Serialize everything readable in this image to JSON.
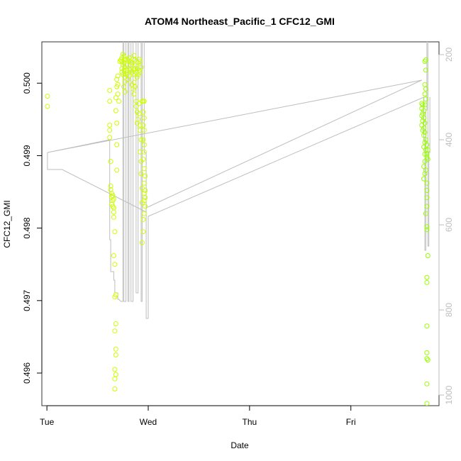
{
  "chart_data": {
    "type": "scatter",
    "title": "ATOM4 Northeast_Pacific_1 CFC12_GMI",
    "xlabel": "Date",
    "ylabel": "CFC12_GMI",
    "x_unit": "days (Tue 00:00 = 0)",
    "xlim": [
      -0.05,
      3.87
    ],
    "ylim": [
      0.49555,
      0.50057
    ],
    "x_ticks": [
      {
        "value": 0,
        "label": "Tue"
      },
      {
        "value": 1,
        "label": "Wed"
      },
      {
        "value": 2,
        "label": "Thu"
      },
      {
        "value": 3,
        "label": "Fri"
      }
    ],
    "y_ticks": [
      {
        "value": 0.496,
        "label": "0.496"
      },
      {
        "value": 0.497,
        "label": "0.497"
      },
      {
        "value": 0.498,
        "label": "0.498"
      },
      {
        "value": 0.499,
        "label": "0.499"
      },
      {
        "value": 0.5,
        "label": "0.500"
      }
    ],
    "y2_ticks": [
      {
        "value": 200,
        "label": "200"
      },
      {
        "value": 400,
        "label": "400"
      },
      {
        "value": 600,
        "label": "600"
      },
      {
        "value": 800,
        "label": "800"
      },
      {
        "value": 1000,
        "label": "1000"
      }
    ],
    "y2lim_reversed": [
      1025,
      170
    ],
    "grid": false,
    "colors": {
      "points_early": "#ccff00",
      "points_late": "#99ff00",
      "secondary_line": "#bebebe",
      "secondary_axis": "#bebebe"
    },
    "series": [
      {
        "kind": "points",
        "values": [
          [
            0.005,
            0.49982
          ],
          [
            0.005,
            0.49968
          ],
          [
            0.62,
            0.4999
          ],
          [
            0.62,
            0.49975
          ],
          [
            0.62,
            0.49942
          ],
          [
            0.62,
            0.49935
          ],
          [
            0.62,
            0.49925
          ],
          [
            0.63,
            0.49892
          ],
          [
            0.63,
            0.49858
          ],
          [
            0.63,
            0.49853
          ],
          [
            0.64,
            0.49848
          ],
          [
            0.64,
            0.49843
          ],
          [
            0.65,
            0.49838
          ],
          [
            0.64,
            0.49833
          ],
          [
            0.66,
            0.49828
          ],
          [
            0.65,
            0.4983
          ],
          [
            0.66,
            0.4984
          ],
          [
            0.65,
            0.49845
          ],
          [
            0.66,
            0.49822
          ],
          [
            0.66,
            0.49815
          ],
          [
            0.67,
            0.49795
          ],
          [
            0.66,
            0.49762
          ],
          [
            0.67,
            0.4975
          ],
          [
            0.68,
            0.49708
          ],
          [
            0.67,
            0.49705
          ],
          [
            0.68,
            0.49668
          ],
          [
            0.67,
            0.49658
          ],
          [
            0.68,
            0.49633
          ],
          [
            0.68,
            0.49625
          ],
          [
            0.67,
            0.49605
          ],
          [
            0.68,
            0.49598
          ],
          [
            0.67,
            0.49592
          ],
          [
            0.67,
            0.49578
          ],
          [
            0.68,
            0.4998
          ],
          [
            0.69,
            0.49995
          ],
          [
            0.69,
            0.50005
          ],
          [
            0.7,
            0.5001
          ],
          [
            0.7,
            0.49998
          ],
          [
            0.7,
            0.49985
          ],
          [
            0.71,
            0.49975
          ],
          [
            0.68,
            0.49962
          ],
          [
            0.69,
            0.49945
          ],
          [
            0.69,
            0.4988
          ],
          [
            0.69,
            0.49915
          ],
          [
            0.72,
            0.5003
          ],
          [
            0.73,
            0.50032
          ],
          [
            0.74,
            0.5003
          ],
          [
            0.75,
            0.50025
          ],
          [
            0.76,
            0.50028
          ],
          [
            0.74,
            0.50035
          ],
          [
            0.75,
            0.5004
          ],
          [
            0.76,
            0.50037
          ],
          [
            0.77,
            0.50032
          ],
          [
            0.78,
            0.50033
          ],
          [
            0.77,
            0.50022
          ],
          [
            0.78,
            0.50018
          ],
          [
            0.79,
            0.50025
          ],
          [
            0.8,
            0.50032
          ],
          [
            0.81,
            0.50035
          ],
          [
            0.82,
            0.5003
          ],
          [
            0.83,
            0.50025
          ],
          [
            0.84,
            0.50028
          ],
          [
            0.85,
            0.50033
          ],
          [
            0.86,
            0.50038
          ],
          [
            0.87,
            0.50032
          ],
          [
            0.88,
            0.50025
          ],
          [
            0.89,
            0.5002
          ],
          [
            0.9,
            0.50028
          ],
          [
            0.91,
            0.50033
          ],
          [
            0.92,
            0.5003
          ],
          [
            0.93,
            0.50022
          ],
          [
            0.74,
            0.5002
          ],
          [
            0.74,
            0.50015
          ],
          [
            0.75,
            0.50012
          ],
          [
            0.76,
            0.50018
          ],
          [
            0.77,
            0.50008
          ],
          [
            0.78,
            0.50012
          ],
          [
            0.79,
            0.50015
          ],
          [
            0.8,
            0.50005
          ],
          [
            0.81,
            0.5001
          ],
          [
            0.82,
            0.50018
          ],
          [
            0.83,
            0.5002
          ],
          [
            0.84,
            0.50015
          ],
          [
            0.85,
            0.50012
          ],
          [
            0.86,
            0.50018
          ],
          [
            0.87,
            0.5002
          ],
          [
            0.88,
            0.50015
          ],
          [
            0.89,
            0.50008
          ],
          [
            0.9,
            0.50012
          ],
          [
            0.91,
            0.50018
          ],
          [
            0.92,
            0.50015
          ],
          [
            0.76,
            0.49995
          ],
          [
            0.77,
            0.49988
          ],
          [
            0.77,
            0.50002
          ],
          [
            0.84,
            0.49998
          ],
          [
            0.85,
            0.49992
          ],
          [
            0.86,
            0.49985
          ],
          [
            0.86,
            0.50001
          ],
          [
            0.87,
            0.49995
          ],
          [
            0.88,
            0.49975
          ],
          [
            0.88,
            0.49968
          ],
          [
            0.89,
            0.4996
          ],
          [
            0.9,
            0.4995
          ],
          [
            0.89,
            0.49945
          ],
          [
            0.91,
            0.49972
          ],
          [
            0.91,
            0.49958
          ],
          [
            0.92,
            0.49942
          ],
          [
            0.92,
            0.49935
          ],
          [
            0.93,
            0.49922
          ],
          [
            0.92,
            0.49905
          ],
          [
            0.93,
            0.49892
          ],
          [
            0.93,
            0.49875
          ],
          [
            0.94,
            0.49855
          ],
          [
            0.94,
            0.49835
          ],
          [
            0.95,
            0.49812
          ],
          [
            0.95,
            0.49795
          ],
          [
            0.94,
            0.4978
          ],
          [
            0.94,
            0.49975
          ],
          [
            0.95,
            0.49975
          ],
          [
            0.96,
            0.49975
          ],
          [
            0.95,
            0.4996
          ],
          [
            0.96,
            0.49952
          ],
          [
            0.95,
            0.49942
          ],
          [
            0.96,
            0.49935
          ],
          [
            0.95,
            0.49922
          ],
          [
            0.96,
            0.49915
          ],
          [
            0.96,
            0.49905
          ],
          [
            0.95,
            0.49895
          ],
          [
            0.96,
            0.49882
          ],
          [
            0.97,
            0.49872
          ],
          [
            0.96,
            0.49862
          ],
          [
            0.97,
            0.49852
          ],
          [
            0.96,
            0.49848
          ],
          [
            0.97,
            0.49842
          ],
          [
            0.96,
            0.49838
          ],
          [
            0.97,
            0.4983
          ],
          [
            0.96,
            0.4982
          ]
        ]
      },
      {
        "kind": "points",
        "values": [
          [
            3.7,
            0.49972
          ],
          [
            3.71,
            0.4997
          ],
          [
            3.7,
            0.49965
          ],
          [
            3.72,
            0.49962
          ],
          [
            3.71,
            0.49958
          ],
          [
            3.7,
            0.49955
          ],
          [
            3.72,
            0.49952
          ],
          [
            3.71,
            0.49948
          ],
          [
            3.73,
            0.49945
          ],
          [
            3.7,
            0.49942
          ],
          [
            3.72,
            0.49938
          ],
          [
            3.71,
            0.49935
          ],
          [
            3.73,
            0.49932
          ],
          [
            3.72,
            0.49928
          ],
          [
            3.74,
            0.49922
          ],
          [
            3.73,
            0.49918
          ],
          [
            3.72,
            0.49912
          ],
          [
            3.74,
            0.49908
          ],
          [
            3.73,
            0.49902
          ],
          [
            3.75,
            0.49898
          ],
          [
            3.73,
            0.49892
          ],
          [
            3.72,
            0.49885
          ],
          [
            3.74,
            0.4988
          ],
          [
            3.73,
            0.49875
          ],
          [
            3.72,
            0.49868
          ],
          [
            3.75,
            0.49862
          ],
          [
            3.74,
            0.50032
          ],
          [
            3.73,
            0.5003
          ],
          [
            3.74,
            0.50018
          ],
          [
            3.73,
            0.49998
          ],
          [
            3.74,
            0.49992
          ],
          [
            3.73,
            0.49985
          ],
          [
            3.74,
            0.49978
          ],
          [
            3.73,
            0.4997
          ],
          [
            3.75,
            0.49915
          ],
          [
            3.76,
            0.49908
          ],
          [
            3.75,
            0.49902
          ],
          [
            3.76,
            0.49895
          ],
          [
            3.75,
            0.49852
          ],
          [
            3.75,
            0.49842
          ],
          [
            3.75,
            0.4983
          ],
          [
            3.74,
            0.4982
          ],
          [
            3.75,
            0.49802
          ],
          [
            3.75,
            0.49798
          ],
          [
            3.76,
            0.49762
          ],
          [
            3.75,
            0.49732
          ],
          [
            3.75,
            0.49725
          ],
          [
            3.75,
            0.49665
          ],
          [
            3.75,
            0.49628
          ],
          [
            3.75,
            0.4962
          ],
          [
            3.76,
            0.49618
          ],
          [
            3.75,
            0.49585
          ],
          [
            3.75,
            0.49558
          ]
        ]
      },
      {
        "kind": "line",
        "axis": "right",
        "values": [
          [
            0.005,
            430
          ],
          [
            0.005,
            470
          ],
          [
            0.15,
            470
          ],
          [
            0.98,
            570
          ],
          [
            0.98,
            560
          ],
          [
            3.7,
            260
          ],
          [
            0.005,
            430
          ],
          [
            0.62,
            400
          ],
          [
            0.62,
            635
          ],
          [
            0.63,
            635
          ],
          [
            0.63,
            710
          ],
          [
            0.66,
            710
          ],
          [
            0.66,
            730
          ],
          [
            0.67,
            730
          ],
          [
            0.67,
            760
          ],
          [
            0.7,
            760
          ],
          [
            0.7,
            775
          ],
          [
            0.71,
            775
          ],
          [
            0.73,
            780
          ],
          [
            0.75,
            780
          ],
          [
            0.75,
            150
          ],
          [
            0.76,
            150
          ],
          [
            0.76,
            780
          ],
          [
            0.78,
            780
          ],
          [
            0.78,
            150
          ],
          [
            0.79,
            150
          ],
          [
            0.79,
            150
          ],
          [
            0.8,
            150
          ],
          [
            0.8,
            780
          ],
          [
            0.81,
            780
          ],
          [
            0.81,
            150
          ],
          [
            0.83,
            150
          ],
          [
            0.83,
            780
          ],
          [
            0.85,
            780
          ],
          [
            0.85,
            150
          ],
          [
            0.88,
            150
          ],
          [
            0.88,
            760
          ],
          [
            0.9,
            760
          ],
          [
            0.9,
            150
          ],
          [
            0.92,
            150
          ],
          [
            0.92,
            150
          ],
          [
            0.93,
            150
          ],
          [
            0.93,
            780
          ],
          [
            0.94,
            780
          ],
          [
            0.94,
            150
          ],
          [
            0.96,
            150
          ],
          [
            0.96,
            430
          ],
          [
            0.98,
            430
          ],
          [
            0.98,
            820
          ],
          [
            1.0,
            820
          ],
          [
            1.0,
            580
          ],
          [
            3.72,
            300
          ],
          [
            3.72,
            400
          ],
          [
            3.73,
            400
          ],
          [
            3.73,
            660
          ],
          [
            3.74,
            660
          ],
          [
            3.74,
            330
          ],
          [
            3.75,
            330
          ],
          [
            3.75,
            170
          ],
          [
            3.76,
            170
          ],
          [
            3.76,
            650
          ],
          [
            3.77,
            650
          ],
          [
            3.77,
            430
          ],
          [
            3.78,
            430
          ],
          [
            3.78,
            300
          ]
        ]
      }
    ]
  }
}
